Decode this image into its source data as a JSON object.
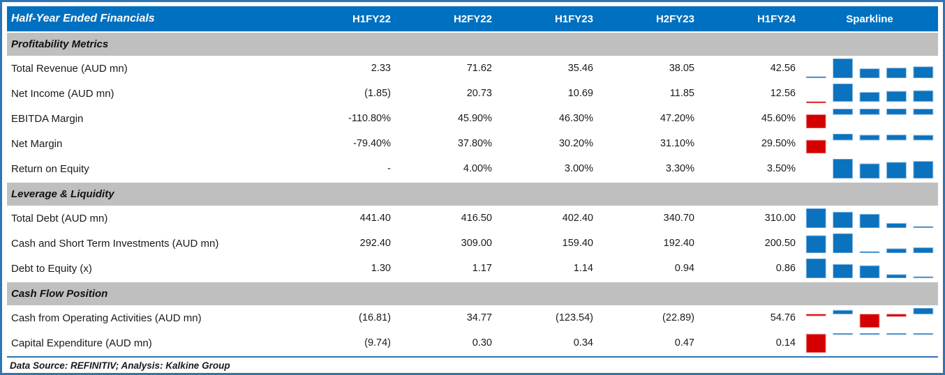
{
  "table": {
    "title": "Half-Year Ended Financials",
    "columns": [
      "H1FY22",
      "H2FY22",
      "H1FY23",
      "H2FY23",
      "H1FY24"
    ],
    "sparkline_header": "Sparkline",
    "sections": [
      {
        "label": "Profitability Metrics",
        "rows": [
          {
            "label": "Total Revenue (AUD mn)",
            "cells": [
              "2.33",
              "71.62",
              "35.46",
              "38.05",
              "42.56"
            ],
            "values": [
              2.33,
              71.62,
              35.46,
              38.05,
              42.56
            ]
          },
          {
            "label": "Net Income (AUD mn)",
            "cells": [
              "(1.85)",
              "20.73",
              "10.69",
              "11.85",
              "12.56"
            ],
            "values": [
              -1.85,
              20.73,
              10.69,
              11.85,
              12.56
            ]
          },
          {
            "label": "EBITDA Margin",
            "cells": [
              "-110.80%",
              "45.90%",
              "46.30%",
              "47.20%",
              "45.60%"
            ],
            "values": [
              -110.8,
              45.9,
              46.3,
              47.2,
              45.6
            ]
          },
          {
            "label": "Net Margin",
            "cells": [
              "-79.40%",
              "37.80%",
              "30.20%",
              "31.10%",
              "29.50%"
            ],
            "values": [
              -79.4,
              37.8,
              30.2,
              31.1,
              29.5
            ]
          },
          {
            "label": "Return on Equity",
            "cells": [
              "-",
              "4.00%",
              "3.00%",
              "3.30%",
              "3.50%"
            ],
            "values": [
              null,
              4.0,
              3.0,
              3.3,
              3.5
            ]
          }
        ]
      },
      {
        "label": "Leverage & Liquidity",
        "rows": [
          {
            "label": "Total Debt (AUD mn)",
            "cells": [
              "441.40",
              "416.50",
              "402.40",
              "340.70",
              "310.00"
            ],
            "values": [
              441.4,
              416.5,
              402.4,
              340.7,
              310.0
            ]
          },
          {
            "label": "Cash and Short Term Investments (AUD mn)",
            "cells": [
              "292.40",
              "309.00",
              "159.40",
              "192.40",
              "200.50"
            ],
            "values": [
              292.4,
              309.0,
              159.4,
              192.4,
              200.5
            ]
          },
          {
            "label": "Debt to Equity (x)",
            "cells": [
              "1.30",
              "1.17",
              "1.14",
              "0.94",
              "0.86"
            ],
            "values": [
              1.3,
              1.17,
              1.14,
              0.94,
              0.86
            ]
          }
        ]
      },
      {
        "label": "Cash Flow Position",
        "rows": [
          {
            "label": "Cash from Operating Activities (AUD mn)",
            "cells": [
              "(16.81)",
              "34.77",
              "(123.54)",
              "(22.89)",
              "54.76"
            ],
            "values": [
              -16.81,
              34.77,
              -123.54,
              -22.89,
              54.76
            ]
          },
          {
            "label": "Capital Expenditure (AUD mn)",
            "cells": [
              "(9.74)",
              "0.30",
              "0.34",
              "0.47",
              "0.14"
            ],
            "values": [
              -9.74,
              0.3,
              0.34,
              0.47,
              0.14
            ]
          }
        ]
      }
    ]
  },
  "footer": {
    "text": "Data Source: REFINITIV; Analysis: Kalkine Group"
  },
  "colors": {
    "header_bg": "#0070C0",
    "band_bg": "#BFBFBF",
    "border_blue": "#2E75B6",
    "bar_blue": "#0B72BE",
    "bar_blue_stroke": "#9DC3E6",
    "bar_red": "#D40000",
    "bar_red_stroke": "#EFA9A9"
  },
  "chart_data": {
    "type": "table",
    "title": "Half-Year Ended Financials",
    "columns": [
      "H1FY22",
      "H2FY22",
      "H1FY23",
      "H2FY23",
      "H1FY24"
    ],
    "sparkline_type": "bar",
    "sparkline_positive_color": "#0B72BE",
    "sparkline_negative_color": "#D40000",
    "rows": [
      {
        "section": "Profitability Metrics",
        "label": "Total Revenue (AUD mn)",
        "values": [
          2.33,
          71.62,
          35.46,
          38.05,
          42.56
        ]
      },
      {
        "section": "Profitability Metrics",
        "label": "Net Income (AUD mn)",
        "values": [
          -1.85,
          20.73,
          10.69,
          11.85,
          12.56
        ]
      },
      {
        "section": "Profitability Metrics",
        "label": "EBITDA Margin (%)",
        "values": [
          -110.8,
          45.9,
          46.3,
          47.2,
          45.6
        ]
      },
      {
        "section": "Profitability Metrics",
        "label": "Net Margin (%)",
        "values": [
          -79.4,
          37.8,
          30.2,
          31.1,
          29.5
        ]
      },
      {
        "section": "Profitability Metrics",
        "label": "Return on Equity (%)",
        "values": [
          null,
          4.0,
          3.0,
          3.3,
          3.5
        ]
      },
      {
        "section": "Leverage & Liquidity",
        "label": "Total Debt (AUD mn)",
        "values": [
          441.4,
          416.5,
          402.4,
          340.7,
          310.0
        ]
      },
      {
        "section": "Leverage & Liquidity",
        "label": "Cash and Short Term Investments (AUD mn)",
        "values": [
          292.4,
          309.0,
          159.4,
          192.4,
          200.5
        ]
      },
      {
        "section": "Leverage & Liquidity",
        "label": "Debt to Equity (x)",
        "values": [
          1.3,
          1.17,
          1.14,
          0.94,
          0.86
        ]
      },
      {
        "section": "Cash Flow Position",
        "label": "Cash from Operating Activities (AUD mn)",
        "values": [
          -16.81,
          34.77,
          -123.54,
          -22.89,
          54.76
        ]
      },
      {
        "section": "Cash Flow Position",
        "label": "Capital Expenditure (AUD mn)",
        "values": [
          -9.74,
          0.3,
          0.34,
          0.47,
          0.14
        ]
      }
    ]
  }
}
